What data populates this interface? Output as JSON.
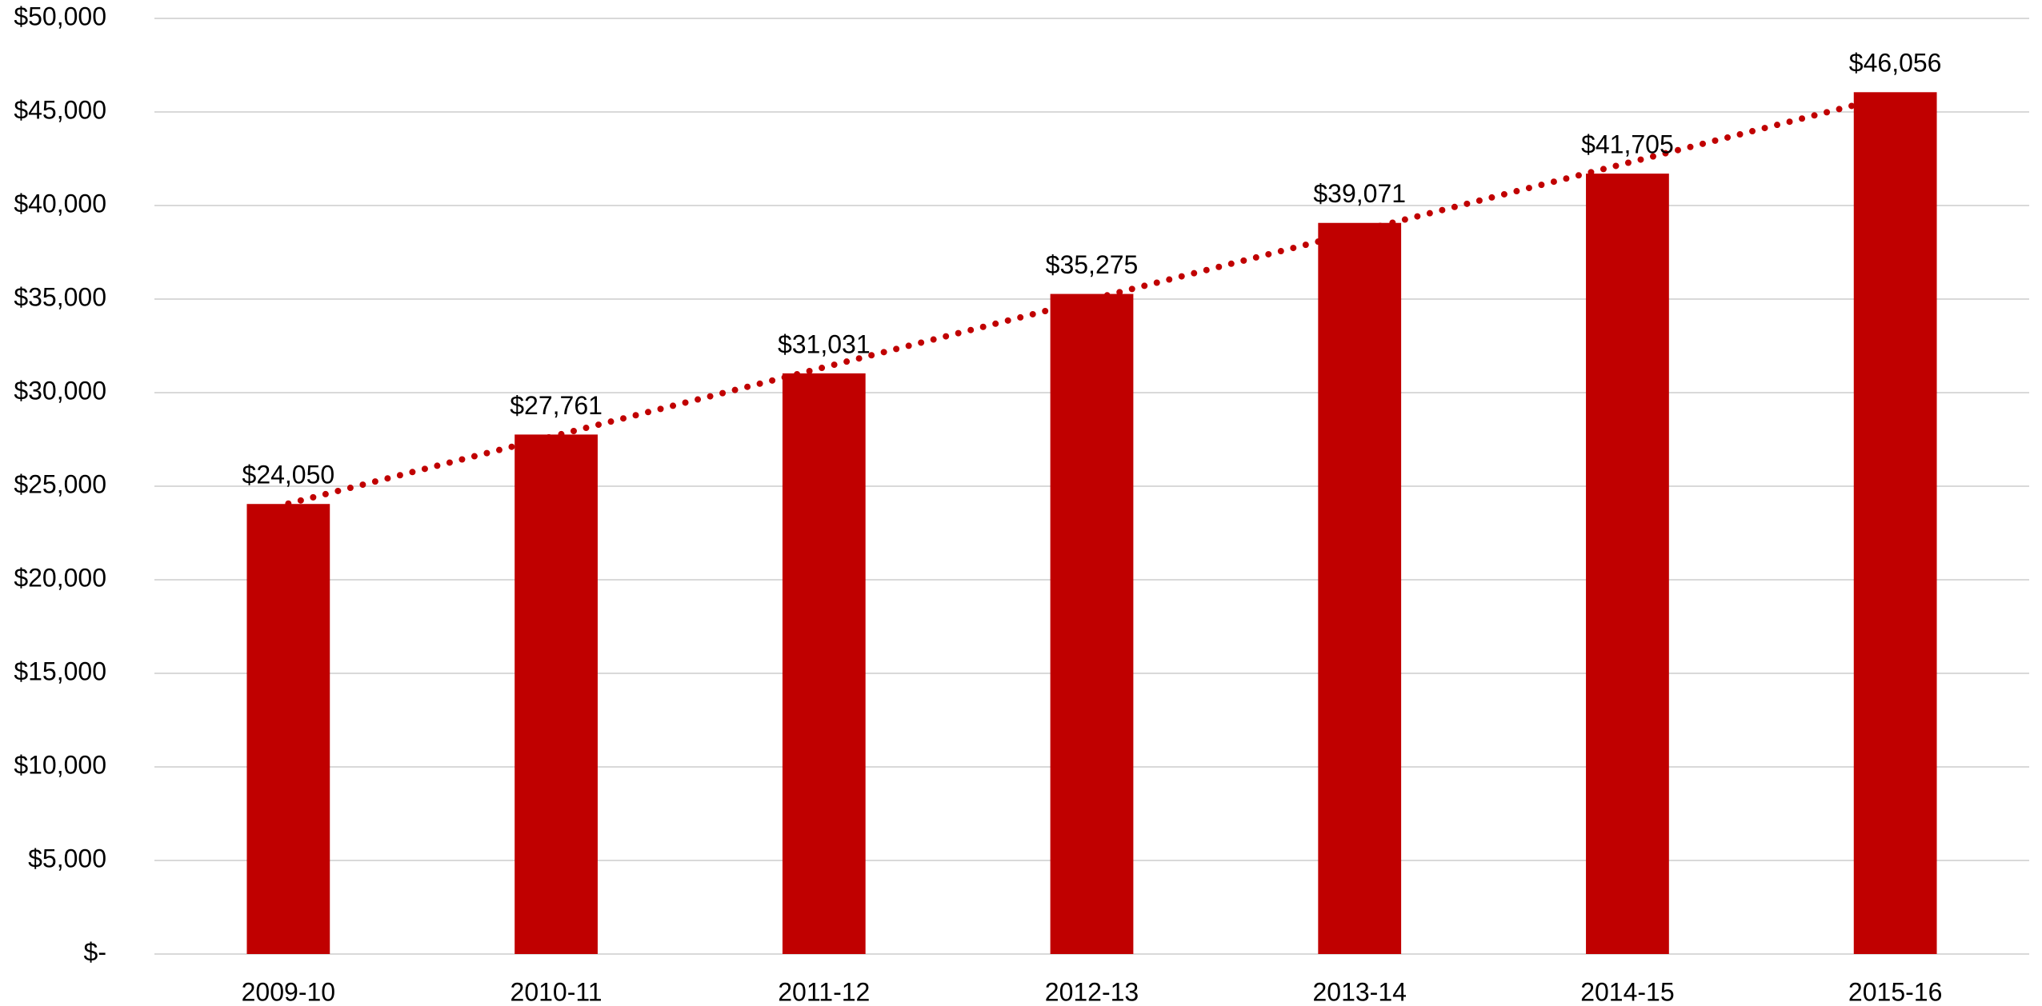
{
  "chart_data": {
    "type": "bar",
    "categories": [
      "2009-10",
      "2010-11",
      "2011-12",
      "2012-13",
      "2013-14",
      "2014-15",
      "2015-16"
    ],
    "values": [
      24050,
      27761,
      31031,
      35275,
      39071,
      41705,
      46056
    ],
    "value_labels": [
      "$24,050",
      "$27,761",
      "$31,031",
      "$35,275",
      "$39,071",
      "$41,705",
      "$46,056"
    ],
    "color": "#c00000",
    "ylim": [
      0,
      50000
    ],
    "yticks": [
      {
        "value": 0,
        "label": "$-"
      },
      {
        "value": 5000,
        "label": "$5,000"
      },
      {
        "value": 10000,
        "label": "$10,000"
      },
      {
        "value": 15000,
        "label": "$15,000"
      },
      {
        "value": 20000,
        "label": "$20,000"
      },
      {
        "value": 25000,
        "label": "$25,000"
      },
      {
        "value": 30000,
        "label": "$30,000"
      },
      {
        "value": 35000,
        "label": "$35,000"
      },
      {
        "value": 40000,
        "label": "$40,000"
      },
      {
        "value": 45000,
        "label": "$45,000"
      },
      {
        "value": 50000,
        "label": "$50,000"
      }
    ],
    "grid": true,
    "trendline": "linear"
  }
}
